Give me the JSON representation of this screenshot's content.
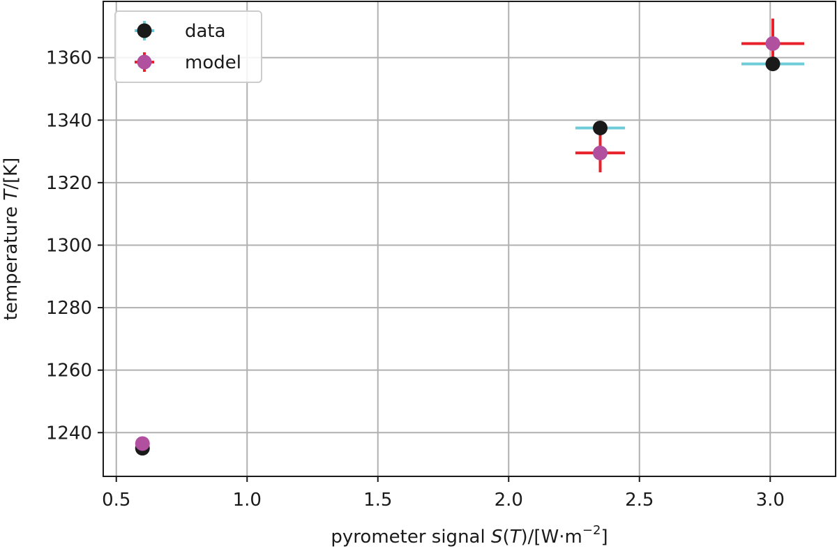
{
  "chart_data": {
    "type": "scatter",
    "title": "",
    "xlabel_parts": [
      "pyrometer signal ",
      "S",
      "(",
      "T",
      ")/[W·m",
      "−2",
      "]"
    ],
    "ylabel_parts": [
      "temperature ",
      "T",
      "/[K]"
    ],
    "xlim": [
      0.45,
      3.25
    ],
    "ylim": [
      1226,
      1378
    ],
    "xticks": [
      0.5,
      1.0,
      1.5,
      2.0,
      2.5,
      3.0
    ],
    "xtick_labels": [
      "0.5",
      "1.0",
      "1.5",
      "2.0",
      "2.5",
      "3.0"
    ],
    "yticks": [
      1240,
      1260,
      1280,
      1300,
      1320,
      1340,
      1360
    ],
    "ytick_labels": [
      "1240",
      "1260",
      "1280",
      "1300",
      "1320",
      "1340",
      "1360"
    ],
    "grid": true,
    "legend_position": "top-left",
    "series": [
      {
        "name": "data",
        "marker_color": "#1a1a1a",
        "errorbar_color": "#6ecbd8",
        "points": [
          {
            "x": 0.6,
            "y": 1235,
            "xerr": 0.0,
            "yerr": 0.0
          },
          {
            "x": 2.35,
            "y": 1337.5,
            "xerr": 0.095,
            "yerr": 0.0
          },
          {
            "x": 3.01,
            "y": 1358,
            "xerr": 0.12,
            "yerr": 0.0
          }
        ]
      },
      {
        "name": "model",
        "marker_color": "#b0509e",
        "errorbar_color": "#e8202a",
        "points": [
          {
            "x": 0.6,
            "y": 1236.5,
            "xerr": 0.0,
            "yerr": 0.0
          },
          {
            "x": 2.35,
            "y": 1329.5,
            "xerr": 0.095,
            "yerr": 6.2
          },
          {
            "x": 3.01,
            "y": 1364.5,
            "xerr": 0.12,
            "yerr": 8.0
          }
        ]
      }
    ]
  }
}
